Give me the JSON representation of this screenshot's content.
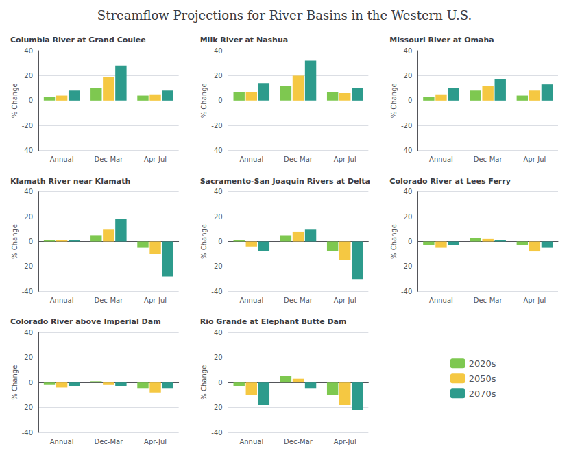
{
  "title": "Streamflow Projections for River Basins in the Western U.S.",
  "legend": "lower right",
  "chart_data": [
    {
      "type": "bar",
      "title": "Columbia River at Grand Coulee",
      "categories": [
        "Annual",
        "Dec-Mar",
        "Apr-Jul"
      ],
      "series": [
        {
          "name": "2020s",
          "color": "#7ec850",
          "values": [
            3,
            10,
            4
          ]
        },
        {
          "name": "2050s",
          "color": "#f5c842",
          "values": [
            4,
            19,
            5
          ]
        },
        {
          "name": "2070s",
          "color": "#2d9b8c",
          "values": [
            8,
            28,
            8
          ]
        }
      ],
      "ylabel": "% Change",
      "ylim": [
        -40,
        40
      ],
      "yticks": [
        -40,
        -20,
        0,
        20,
        40
      ],
      "grid": true
    },
    {
      "type": "bar",
      "title": "Milk River at Nashua",
      "categories": [
        "Annual",
        "Dec-Mar",
        "Apr-Jul"
      ],
      "series": [
        {
          "name": "2020s",
          "color": "#7ec850",
          "values": [
            7,
            12,
            7
          ]
        },
        {
          "name": "2050s",
          "color": "#f5c842",
          "values": [
            7,
            20,
            6
          ]
        },
        {
          "name": "2070s",
          "color": "#2d9b8c",
          "values": [
            14,
            32,
            10
          ]
        }
      ],
      "ylabel": "% Change",
      "ylim": [
        -40,
        40
      ],
      "yticks": [
        -40,
        -20,
        0,
        20,
        40
      ],
      "grid": true
    },
    {
      "type": "bar",
      "title": "Missouri River at Omaha",
      "categories": [
        "Annual",
        "Dec-Mar",
        "Apr-Jul"
      ],
      "series": [
        {
          "name": "2020s",
          "color": "#7ec850",
          "values": [
            3,
            8,
            4
          ]
        },
        {
          "name": "2050s",
          "color": "#f5c842",
          "values": [
            5,
            12,
            8
          ]
        },
        {
          "name": "2070s",
          "color": "#2d9b8c",
          "values": [
            10,
            17,
            13
          ]
        }
      ],
      "ylabel": "% Change",
      "ylim": [
        -40,
        40
      ],
      "yticks": [
        -40,
        -20,
        0,
        20,
        40
      ],
      "grid": true
    },
    {
      "type": "bar",
      "title": "Klamath River near Klamath",
      "categories": [
        "Annual",
        "Dec-Mar",
        "Apr-Jul"
      ],
      "series": [
        {
          "name": "2020s",
          "color": "#7ec850",
          "values": [
            1,
            5,
            -5
          ]
        },
        {
          "name": "2050s",
          "color": "#f5c842",
          "values": [
            1,
            10,
            -10
          ]
        },
        {
          "name": "2070s",
          "color": "#2d9b8c",
          "values": [
            1,
            18,
            -28
          ]
        }
      ],
      "ylabel": "% Change",
      "ylim": [
        -40,
        40
      ],
      "yticks": [
        -40,
        -20,
        0,
        20,
        40
      ],
      "grid": true
    },
    {
      "type": "bar",
      "title": "Sacramento-San Joaquin Rivers at Delta",
      "categories": [
        "Annual",
        "Dec-Mar",
        "Apr-Jul"
      ],
      "series": [
        {
          "name": "2020s",
          "color": "#7ec850",
          "values": [
            1,
            5,
            -8
          ]
        },
        {
          "name": "2050s",
          "color": "#f5c842",
          "values": [
            -4,
            8,
            -15
          ]
        },
        {
          "name": "2070s",
          "color": "#2d9b8c",
          "values": [
            -8,
            10,
            -30
          ]
        }
      ],
      "ylabel": "% Change",
      "ylim": [
        -40,
        40
      ],
      "yticks": [
        -40,
        -20,
        0,
        20,
        40
      ],
      "grid": true
    },
    {
      "type": "bar",
      "title": "Colorado River at Lees Ferry",
      "categories": [
        "Annual",
        "Dec-Mar",
        "Apr-Jul"
      ],
      "series": [
        {
          "name": "2020s",
          "color": "#7ec850",
          "values": [
            -3,
            3,
            -3
          ]
        },
        {
          "name": "2050s",
          "color": "#f5c842",
          "values": [
            -5,
            2,
            -8
          ]
        },
        {
          "name": "2070s",
          "color": "#2d9b8c",
          "values": [
            -3,
            1,
            -5
          ]
        }
      ],
      "ylabel": "% Change",
      "ylim": [
        -40,
        40
      ],
      "yticks": [
        -40,
        -20,
        0,
        20,
        40
      ],
      "grid": true
    },
    {
      "type": "bar",
      "title": "Colorado River above Imperial Dam",
      "categories": [
        "Annual",
        "Dec-Mar",
        "Apr-Jul"
      ],
      "series": [
        {
          "name": "2020s",
          "color": "#7ec850",
          "values": [
            -2,
            1,
            -5
          ]
        },
        {
          "name": "2050s",
          "color": "#f5c842",
          "values": [
            -4,
            -2,
            -8
          ]
        },
        {
          "name": "2070s",
          "color": "#2d9b8c",
          "values": [
            -3,
            -3,
            -5
          ]
        }
      ],
      "ylabel": "% Change",
      "ylim": [
        -40,
        40
      ],
      "yticks": [
        -40,
        -20,
        0,
        20,
        40
      ],
      "grid": true
    },
    {
      "type": "bar",
      "title": "Rio Grande at Elephant Butte Dam",
      "categories": [
        "Annual",
        "Dec-Mar",
        "Apr-Jul"
      ],
      "series": [
        {
          "name": "2020s",
          "color": "#7ec850",
          "values": [
            -3,
            5,
            -10
          ]
        },
        {
          "name": "2050s",
          "color": "#f5c842",
          "values": [
            -10,
            3,
            -18
          ]
        },
        {
          "name": "2070s",
          "color": "#2d9b8c",
          "values": [
            -18,
            -5,
            -22
          ]
        }
      ],
      "ylabel": "% Change",
      "ylim": [
        -40,
        40
      ],
      "yticks": [
        -40,
        -20,
        0,
        20,
        40
      ],
      "grid": true
    }
  ]
}
